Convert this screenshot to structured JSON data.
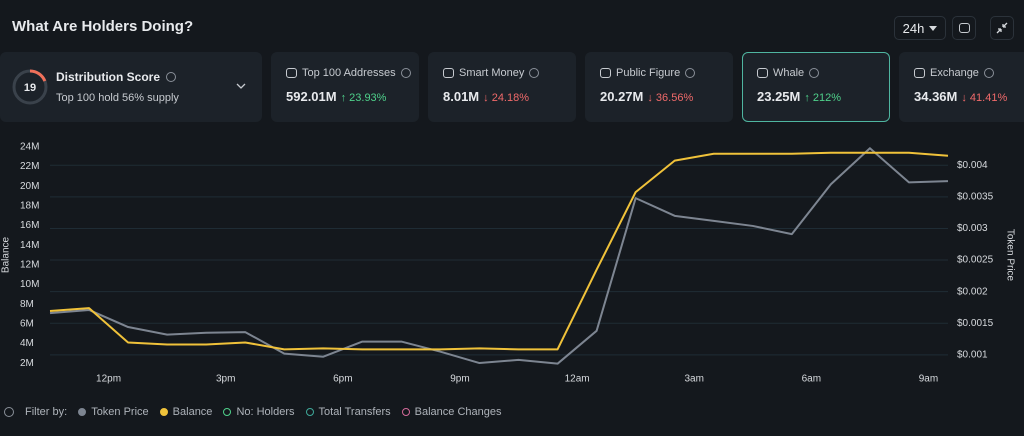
{
  "header": {
    "title": "What Are Holders Doing?",
    "timeframe": "24h"
  },
  "distribution": {
    "label": "Distribution Score",
    "score": 19,
    "subtitle": "Top 100 hold 56% supply",
    "color": "#f0705a"
  },
  "cards": [
    {
      "label": "Top 100 Addresses",
      "value": "592.01M",
      "change": "↑ 23.93%",
      "change_color": "#4fd18b",
      "selected": false
    },
    {
      "label": "Smart Money",
      "value": "8.01M",
      "change": "↓ 24.18%",
      "change_color": "#f06a6a",
      "selected": false
    },
    {
      "label": "Public Figure",
      "value": "20.27M",
      "change": "↓ 36.56%",
      "change_color": "#f06a6a",
      "selected": false
    },
    {
      "label": "Whale",
      "value": "23.25M",
      "change": "↑ 212%",
      "change_color": "#4fd18b",
      "selected": true
    },
    {
      "label": "Exchange",
      "value": "34.36M",
      "change": "↓ 41.41%",
      "change_color": "#f06a6a",
      "selected": false
    }
  ],
  "chart_data": {
    "type": "line",
    "ylabel": "Balance",
    "y2label": "Token Price",
    "x": [
      0,
      1,
      2,
      3,
      4,
      5,
      6,
      7,
      8,
      9,
      10,
      11,
      12,
      13,
      14,
      15,
      16,
      17,
      18,
      19,
      20,
      21,
      22,
      23
    ],
    "xlim": [
      0,
      23
    ],
    "xticks": [
      {
        "value": 1.5,
        "label": "12pm"
      },
      {
        "value": 4.5,
        "label": "3pm"
      },
      {
        "value": 7.5,
        "label": "6pm"
      },
      {
        "value": 10.5,
        "label": "9pm"
      },
      {
        "value": 13.5,
        "label": "12am"
      },
      {
        "value": 16.5,
        "label": "3am"
      },
      {
        "value": 19.5,
        "label": "6am"
      },
      {
        "value": 22.5,
        "label": "9am"
      }
    ],
    "ylim": [
      1300000,
      24700000
    ],
    "yticks": [
      {
        "value": 2000000,
        "label": "2M"
      },
      {
        "value": 4000000,
        "label": "4M"
      },
      {
        "value": 6000000,
        "label": "6M"
      },
      {
        "value": 8000000,
        "label": "8M"
      },
      {
        "value": 10000000,
        "label": "10M"
      },
      {
        "value": 12000000,
        "label": "12M"
      },
      {
        "value": 14000000,
        "label": "14M"
      },
      {
        "value": 16000000,
        "label": "16M"
      },
      {
        "value": 18000000,
        "label": "18M"
      },
      {
        "value": 20000000,
        "label": "20M"
      },
      {
        "value": 22000000,
        "label": "22M"
      },
      {
        "value": 24000000,
        "label": "24M"
      }
    ],
    "y2lim": [
      0.00076,
      0.0044
    ],
    "y2ticks": [
      {
        "value": 0.001,
        "label": "$0.001"
      },
      {
        "value": 0.0015,
        "label": "$0.0015"
      },
      {
        "value": 0.002,
        "label": "$0.002"
      },
      {
        "value": 0.0025,
        "label": "$0.0025"
      },
      {
        "value": 0.003,
        "label": "$0.003"
      },
      {
        "value": 0.0035,
        "label": "$0.0035"
      },
      {
        "value": 0.004,
        "label": "$0.004"
      }
    ],
    "grid": true,
    "series": [
      {
        "name": "Token Price",
        "color": "#7d8591",
        "axis": "y2",
        "values": [
          0.00166,
          0.00171,
          0.00144,
          0.00132,
          0.00135,
          0.00136,
          0.00102,
          0.00097,
          0.00121,
          0.00121,
          0.00105,
          0.00087,
          0.00092,
          0.00086,
          0.00138,
          0.00348,
          0.0032,
          0.00312,
          0.00304,
          0.00291,
          0.0037,
          0.00427,
          0.00373,
          0.00375
        ]
      },
      {
        "name": "Balance",
        "color": "#f0c23a",
        "values": [
          7300000,
          7600000,
          4100000,
          3900000,
          3900000,
          4100000,
          3400000,
          3500000,
          3400000,
          3400000,
          3400000,
          3500000,
          3400000,
          3400000,
          11500000,
          19400000,
          22600000,
          23300000,
          23300000,
          23300000,
          23400000,
          23400000,
          23400000,
          23100000
        ]
      }
    ]
  },
  "filters": {
    "label": "Filter by:",
    "extra": [
      {
        "label": "No: Holders",
        "color": "#4fd18b"
      },
      {
        "label": "Total Transfers",
        "color": "#3fa99a"
      },
      {
        "label": "Balance Changes",
        "color": "#d46a9a"
      }
    ]
  }
}
